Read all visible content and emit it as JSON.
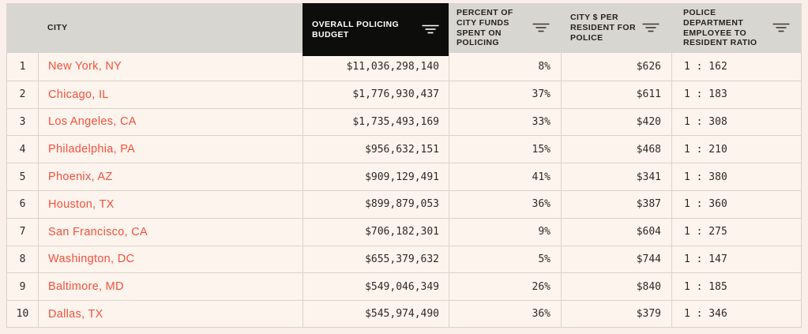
{
  "table": {
    "columns": [
      {
        "key": "rank",
        "label": "",
        "field": "rank",
        "sortable": false,
        "highlighted": false
      },
      {
        "key": "city",
        "label": "CITY",
        "field": "city",
        "sortable": false,
        "highlighted": false
      },
      {
        "key": "budget",
        "label": "OVERALL POLICING BUDGET",
        "field": "budget",
        "sortable": true,
        "highlighted": true
      },
      {
        "key": "percent",
        "label": "PERCENT OF CITY FUNDS SPENT ON POLICING",
        "field": "percent",
        "sortable": true,
        "highlighted": false
      },
      {
        "key": "pr",
        "label": "CITY $ PER RESIDENT FOR POLICE",
        "field": "per_resident",
        "sortable": true,
        "highlighted": false
      },
      {
        "key": "ratio",
        "label": "POLICE DEPARTMENT EMPLOYEE TO RESIDENT RATIO",
        "field": "ratio",
        "sortable": true,
        "highlighted": false
      }
    ],
    "rows": [
      {
        "rank": "1",
        "city": "New York, NY",
        "budget": "$11,036,298,140",
        "percent": "8%",
        "per_resident": "$626",
        "ratio": "1 : 162"
      },
      {
        "rank": "2",
        "city": "Chicago, IL",
        "budget": "$1,776,930,437",
        "percent": "37%",
        "per_resident": "$611",
        "ratio": "1 : 183"
      },
      {
        "rank": "3",
        "city": "Los Angeles, CA",
        "budget": "$1,735,493,169",
        "percent": "33%",
        "per_resident": "$420",
        "ratio": "1 : 308"
      },
      {
        "rank": "4",
        "city": "Philadelphia, PA",
        "budget": "$956,632,151",
        "percent": "15%",
        "per_resident": "$468",
        "ratio": "1 : 210"
      },
      {
        "rank": "5",
        "city": "Phoenix, AZ",
        "budget": "$909,129,491",
        "percent": "41%",
        "per_resident": "$341",
        "ratio": "1 : 380"
      },
      {
        "rank": "6",
        "city": "Houston, TX",
        "budget": "$899,879,053",
        "percent": "36%",
        "per_resident": "$387",
        "ratio": "1 : 360"
      },
      {
        "rank": "7",
        "city": "San Francisco, CA",
        "budget": "$706,182,301",
        "percent": "9%",
        "per_resident": "$604",
        "ratio": "1 : 275"
      },
      {
        "rank": "8",
        "city": "Washington, DC",
        "budget": "$655,379,632",
        "percent": "5%",
        "per_resident": "$744",
        "ratio": "1 : 147"
      },
      {
        "rank": "9",
        "city": "Baltimore, MD",
        "budget": "$549,046,349",
        "percent": "26%",
        "per_resident": "$840",
        "ratio": "1 : 185"
      },
      {
        "rank": "10",
        "city": "Dallas, TX",
        "budget": "$545,974,490",
        "percent": "36%",
        "per_resident": "$379",
        "ratio": "1 : 346"
      }
    ]
  },
  "icons": {
    "sort": "sort-lines-icon"
  },
  "colors": {
    "page_background": "#fbefe9",
    "row_background": "#fdf4ed",
    "header_background": "#d8d6d1",
    "highlight_header_background": "#0d0d0c",
    "highlight_header_text": "#ffffff",
    "border": "#d9d2cb",
    "text": "#2e2a26",
    "city_link": "#f4503c"
  }
}
